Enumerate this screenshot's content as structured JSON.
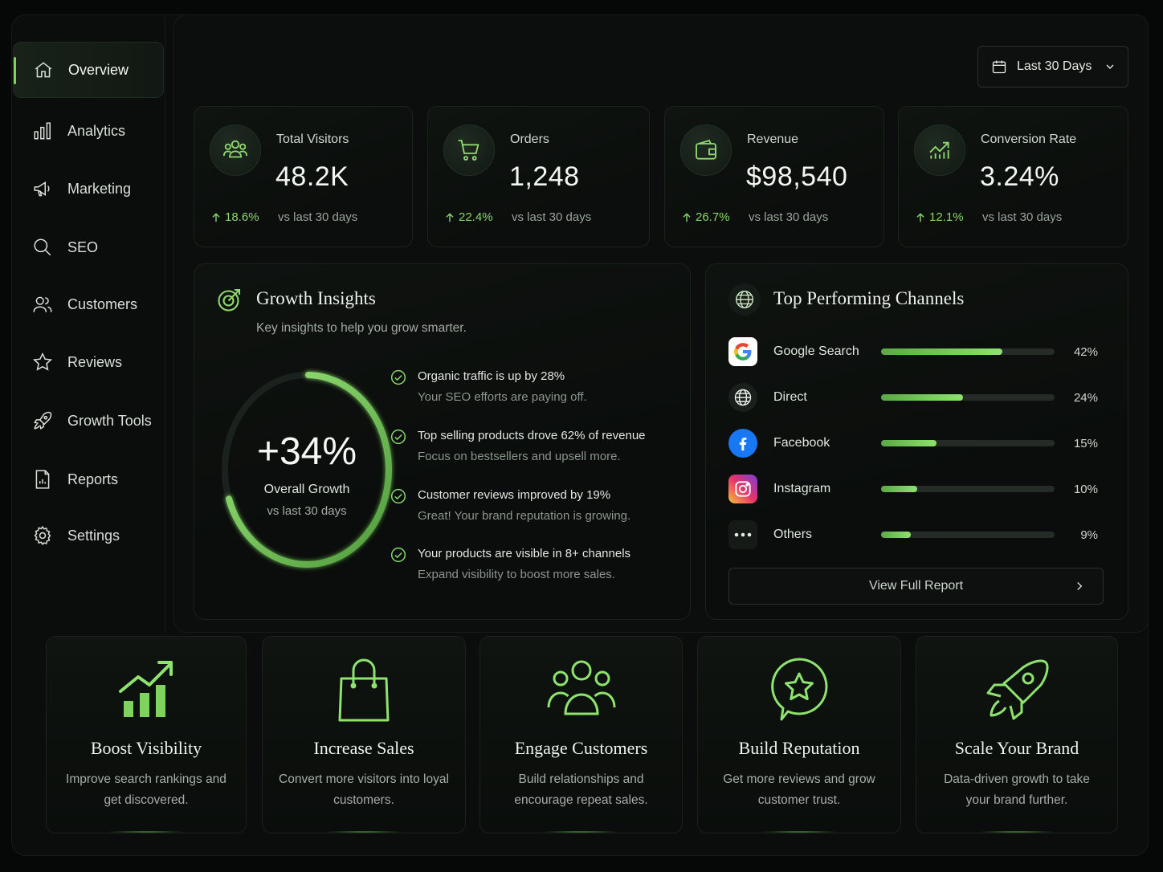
{
  "sidebar": {
    "items": [
      {
        "label": "Overview",
        "icon": "home-icon",
        "active": true
      },
      {
        "label": "Analytics",
        "icon": "bar-chart-icon"
      },
      {
        "label": "Marketing",
        "icon": "megaphone-icon"
      },
      {
        "label": "SEO",
        "icon": "search-icon"
      },
      {
        "label": "Customers",
        "icon": "users-icon"
      },
      {
        "label": "Reviews",
        "icon": "star-icon"
      },
      {
        "label": "Growth Tools",
        "icon": "rocket-icon"
      },
      {
        "label": "Reports",
        "icon": "document-icon"
      },
      {
        "label": "Settings",
        "icon": "gear-icon"
      }
    ]
  },
  "header": {
    "date_range": "Last 30 Days"
  },
  "stats": [
    {
      "label": "Total Visitors",
      "value": "48.2K",
      "delta": "18.6%",
      "vs": "vs last 30 days",
      "icon": "visitors-icon"
    },
    {
      "label": "Orders",
      "value": "1,248",
      "delta": "22.4%",
      "vs": "vs last 30 days",
      "icon": "cart-icon"
    },
    {
      "label": "Revenue",
      "value": "$98,540",
      "delta": "26.7%",
      "vs": "vs last 30 days",
      "icon": "wallet-icon"
    },
    {
      "label": "Conversion Rate",
      "value": "3.24%",
      "delta": "12.1%",
      "vs": "vs last 30 days",
      "icon": "trend-icon"
    }
  ],
  "growth": {
    "title": "Growth Insights",
    "subtitle": "Key insights to help you grow smarter.",
    "ring_value": "+34%",
    "ring_fraction": 0.34,
    "ring_label": "Overall Growth",
    "ring_sub": "vs last 30 days",
    "insights": [
      {
        "title": "Organic traffic is up by 28%",
        "sub": "Your SEO efforts are paying off."
      },
      {
        "title": "Top selling products drove 62% of revenue",
        "sub": "Focus on bestsellers and upsell more."
      },
      {
        "title": "Customer reviews improved by 19%",
        "sub": "Great! Your brand reputation is growing."
      },
      {
        "title": "Your products are visible in 8+ channels",
        "sub": "Expand visibility to boost more sales."
      }
    ]
  },
  "channels": {
    "title": "Top Performing Channels",
    "button": "View Full Report",
    "items": [
      {
        "name": "Google Search",
        "pct": "42%",
        "fill": 0.7,
        "icon": "google-icon"
      },
      {
        "name": "Direct",
        "pct": "24%",
        "fill": 0.47,
        "icon": "globe-icon"
      },
      {
        "name": "Facebook",
        "pct": "15%",
        "fill": 0.32,
        "icon": "facebook-icon"
      },
      {
        "name": "Instagram",
        "pct": "10%",
        "fill": 0.21,
        "icon": "instagram-icon"
      },
      {
        "name": "Others",
        "pct": "9%",
        "fill": 0.17,
        "icon": "more-icon"
      }
    ]
  },
  "features": [
    {
      "title": "Boost Visibility",
      "desc": "Improve search rankings and get discovered.",
      "icon": "growth-chart-icon"
    },
    {
      "title": "Increase Sales",
      "desc": "Convert more visitors into loyal customers.",
      "icon": "shopping-bag-icon"
    },
    {
      "title": "Engage Customers",
      "desc": "Build relationships and encourage repeat sales.",
      "icon": "group-icon"
    },
    {
      "title": "Build Reputation",
      "desc": "Get more reviews and grow customer trust.",
      "icon": "badge-star-icon"
    },
    {
      "title": "Scale Your Brand",
      "desc": "Data-driven growth to take your brand further.",
      "icon": "rocket-icon"
    }
  ],
  "colors": {
    "accent": "#7fd35c",
    "background": "#060807",
    "panel": "#0f1310"
  }
}
